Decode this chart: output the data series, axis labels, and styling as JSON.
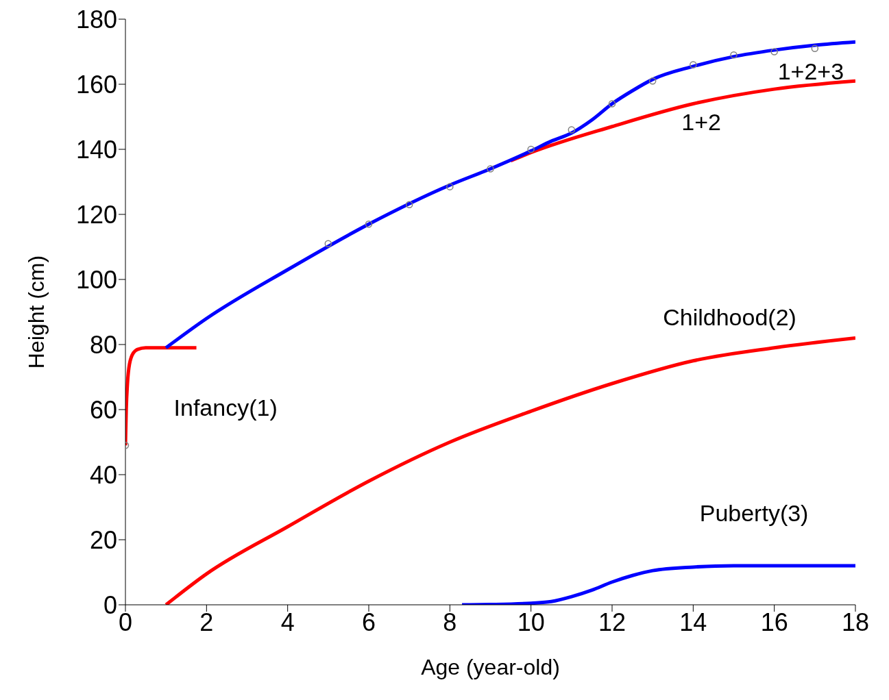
{
  "chart_data": {
    "type": "line",
    "xlabel": "Age (year-old)",
    "ylabel": "Height (cm)",
    "xlim": [
      0,
      18
    ],
    "ylim": [
      0,
      180
    ],
    "xticks": [
      0,
      2,
      4,
      6,
      8,
      10,
      12,
      14,
      16,
      18
    ],
    "yticks": [
      0,
      20,
      40,
      60,
      80,
      100,
      120,
      140,
      160,
      180
    ],
    "grid": false,
    "legend": false,
    "line_style": "solid",
    "series": [
      {
        "name": "Infancy(1)",
        "color": "#ff0000",
        "x": [
          0,
          0.02,
          0.05,
          0.1,
          0.2,
          0.3,
          0.5,
          1,
          1.75
        ],
        "values": [
          49,
          60,
          68,
          74,
          77.5,
          78.5,
          79,
          79,
          79
        ]
      },
      {
        "name": "Childhood(2)",
        "color": "#ff0000",
        "x": [
          1,
          2,
          4,
          6,
          8,
          10,
          12,
          14,
          16,
          18
        ],
        "values": [
          0,
          9.5,
          24,
          38,
          50,
          59.5,
          68,
          75,
          79,
          82
        ]
      },
      {
        "name": "1+2",
        "color": "#ff0000",
        "x": [
          9.5,
          10,
          12,
          14,
          16,
          18
        ],
        "values": [
          136.5,
          139,
          147,
          154,
          158.5,
          161
        ]
      },
      {
        "name": "Puberty(3)",
        "color": "#0000ff",
        "x": [
          8.3,
          9,
          10,
          10.5,
          11,
          11.5,
          12,
          12.5,
          13,
          14,
          15,
          18
        ],
        "values": [
          0,
          0.1,
          0.5,
          1,
          2.5,
          4.5,
          7,
          9,
          10.5,
          11.6,
          12,
          12
        ]
      },
      {
        "name": "1+2+3",
        "color": "#0000ff",
        "x": [
          1,
          2,
          4,
          6,
          8,
          9,
          10,
          10.5,
          11,
          11.5,
          12,
          12.5,
          13,
          14,
          15,
          16,
          17,
          18
        ],
        "values": [
          79,
          88,
          103,
          117,
          129,
          134,
          139.5,
          142.5,
          145,
          149,
          154,
          158,
          161.5,
          165.5,
          168.5,
          170.5,
          172,
          173
        ]
      },
      {
        "type": "scatter",
        "color": "#808080",
        "marker": "circle",
        "x": [
          0,
          5,
          6,
          7,
          8,
          9,
          10,
          11,
          12,
          13,
          14,
          15,
          16,
          17
        ],
        "values": [
          49,
          111,
          117,
          123,
          128.5,
          134,
          140,
          146,
          154,
          161,
          166,
          169,
          170,
          171
        ]
      }
    ]
  }
}
